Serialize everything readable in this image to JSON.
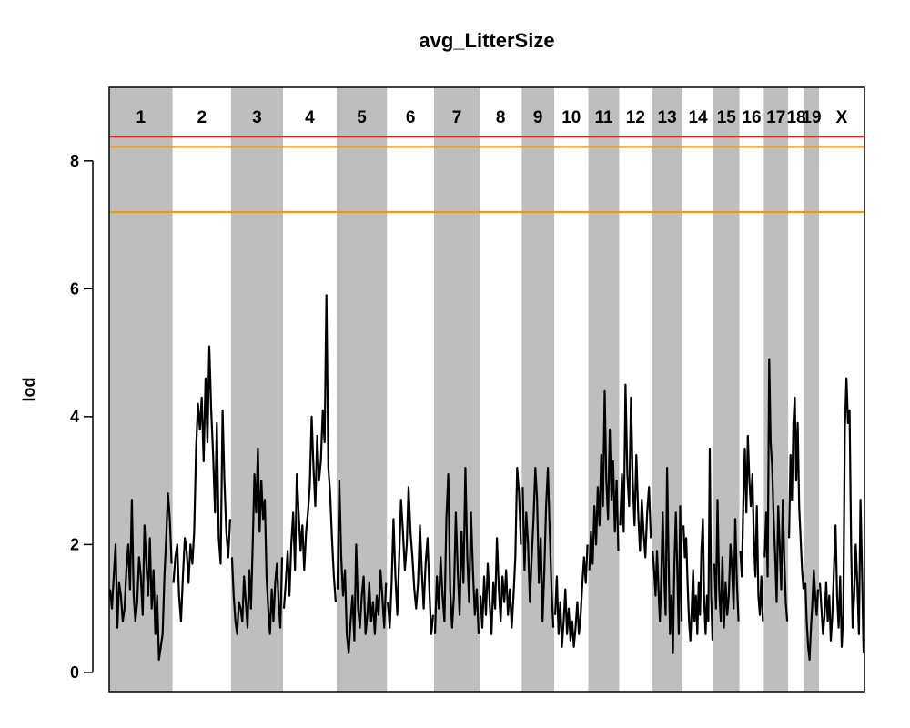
{
  "chart_data": {
    "type": "line",
    "title": "avg_LitterSize",
    "xlabel": "",
    "ylabel": "lod",
    "ylim": [
      -0.3,
      9.15
    ],
    "yticks": [
      0,
      2,
      4,
      6,
      8
    ],
    "colors": {
      "band": "#bebebe",
      "line": "#000000",
      "threshold_red": "#e8211f",
      "threshold_orange": "#e39a2b"
    },
    "thresholds": [
      {
        "value": 8.38,
        "color": "#e8211f"
      },
      {
        "value": 8.22,
        "color": "#e39a2b"
      },
      {
        "value": 7.2,
        "color": "#e39a2b"
      }
    ],
    "chromosomes": [
      {
        "label": "1",
        "start": 0,
        "end": 195,
        "shaded": true,
        "lod": [
          1.3,
          1.0,
          1.5,
          2.0,
          0.7,
          1.4,
          1.2,
          0.8,
          1.0,
          1.6,
          2.0,
          1.3,
          2.7,
          1.2,
          0.8,
          1.1,
          1.8,
          1.5,
          0.9,
          2.3,
          1.7,
          1.2,
          2.1,
          1.0,
          1.6,
          0.6,
          1.2,
          0.2,
          0.4,
          0.6,
          1.5,
          2.1,
          2.8,
          2.4,
          1.7
        ]
      },
      {
        "label": "2",
        "start": 195,
        "end": 375,
        "shaded": false,
        "lod": [
          1.4,
          1.8,
          2.0,
          1.2,
          0.8,
          1.5,
          2.1,
          1.9,
          1.4,
          2.0,
          1.7,
          2.2,
          3.5,
          4.2,
          3.8,
          4.3,
          3.3,
          4.6,
          3.6,
          5.1,
          4.1,
          3.4,
          2.5,
          3.9,
          2.1,
          1.7,
          4.1,
          3.0,
          2.2,
          1.8,
          2.4
        ]
      },
      {
        "label": "3",
        "start": 375,
        "end": 535,
        "shaded": true,
        "lod": [
          1.8,
          1.2,
          0.8,
          0.6,
          1.1,
          1.0,
          0.8,
          1.5,
          1.1,
          0.7,
          1.6,
          1.0,
          2.0,
          3.1,
          2.5,
          3.5,
          2.2,
          3.0,
          2.4,
          2.7,
          1.5,
          1.0,
          0.6,
          1.3,
          0.8,
          1.4,
          1.7,
          1.1,
          0.7,
          1.8
        ]
      },
      {
        "label": "4",
        "start": 535,
        "end": 700,
        "shaded": false,
        "lod": [
          1.0,
          1.4,
          1.9,
          1.2,
          2.0,
          2.5,
          1.6,
          3.1,
          2.5,
          1.9,
          2.3,
          1.6,
          2.2,
          2.5,
          2.9,
          4.0,
          3.2,
          2.6,
          3.7,
          3.0,
          3.3,
          4.1,
          3.6,
          5.9,
          3.2,
          2.8,
          2.1,
          1.5,
          1.1
        ]
      },
      {
        "label": "5",
        "start": 700,
        "end": 855,
        "shaded": true,
        "lod": [
          1.3,
          3.0,
          1.8,
          1.2,
          1.6,
          0.6,
          0.3,
          0.8,
          1.2,
          0.5,
          2.0,
          1.0,
          0.7,
          1.2,
          1.5,
          0.6,
          0.9,
          1.4,
          0.8,
          1.1,
          0.6,
          1.2,
          0.9,
          1.6,
          1.2,
          0.7,
          1.4
        ]
      },
      {
        "label": "6",
        "start": 855,
        "end": 1000,
        "shaded": false,
        "lod": [
          1.1,
          0.7,
          1.4,
          2.4,
          1.5,
          0.9,
          1.8,
          2.7,
          2.2,
          1.6,
          2.0,
          2.9,
          2.2,
          1.8,
          1.3,
          1.0,
          1.4,
          2.3,
          1.6,
          1.0,
          1.7,
          2.1,
          1.3,
          0.6,
          0.9
        ]
      },
      {
        "label": "7",
        "start": 1000,
        "end": 1140,
        "shaded": true,
        "lod": [
          0.6,
          1.5,
          1.0,
          1.8,
          1.2,
          0.8,
          2.4,
          3.1,
          1.3,
          0.7,
          1.2,
          2.5,
          1.6,
          0.9,
          2.2,
          1.4,
          3.2,
          1.8,
          1.1,
          2.5,
          1.6,
          0.9,
          1.3,
          0.6
        ]
      },
      {
        "label": "8",
        "start": 1140,
        "end": 1270,
        "shaded": false,
        "lod": [
          1.2,
          0.7,
          1.5,
          0.9,
          1.7,
          1.1,
          0.6,
          1.4,
          1.0,
          2.1,
          1.3,
          0.8,
          1.5,
          1.1,
          1.6,
          0.9,
          1.3,
          0.7,
          1.2,
          1.8,
          3.2,
          2.8,
          2.0
        ]
      },
      {
        "label": "9",
        "start": 1270,
        "end": 1370,
        "shaded": true,
        "lod": [
          2.9,
          1.6,
          2.5,
          2.0,
          1.1,
          1.8,
          2.4,
          3.2,
          2.7,
          1.4,
          2.1,
          0.8,
          1.6,
          2.6,
          3.2,
          2.2,
          1.3,
          0.7
        ]
      },
      {
        "label": "10",
        "start": 1370,
        "end": 1475,
        "shaded": false,
        "lod": [
          0.9,
          1.5,
          0.6,
          1.1,
          0.4,
          0.8,
          1.3,
          0.6,
          1.0,
          0.5,
          0.8,
          0.4,
          0.7,
          1.1,
          0.6,
          0.9,
          1.4,
          1.8,
          1.4,
          2.0
        ]
      },
      {
        "label": "11",
        "start": 1475,
        "end": 1570,
        "shaded": true,
        "lod": [
          1.6,
          2.2,
          1.7,
          2.6,
          2.0,
          2.9,
          2.3,
          3.4,
          2.6,
          4.4,
          3.0,
          2.4,
          3.8,
          2.7,
          3.3,
          2.2,
          3.0,
          1.9
        ]
      },
      {
        "label": "12",
        "start": 1570,
        "end": 1670,
        "shaded": false,
        "lod": [
          2.3,
          3.1,
          2.2,
          4.5,
          3.1,
          2.6,
          4.3,
          3.0,
          2.3,
          3.4,
          2.5,
          1.9,
          2.7,
          2.2,
          1.8,
          2.5,
          2.9,
          2.1
        ]
      },
      {
        "label": "13",
        "start": 1670,
        "end": 1765,
        "shaded": true,
        "lod": [
          1.9,
          1.6,
          1.2,
          1.9,
          1.3,
          0.8,
          1.5,
          2.5,
          1.5,
          0.9,
          3.2,
          1.8,
          0.6,
          1.2,
          0.3,
          1.7,
          2.5,
          1.6,
          0.6,
          2.6,
          0.8
        ]
      },
      {
        "label": "14",
        "start": 1765,
        "end": 1860,
        "shaded": false,
        "lod": [
          2.3,
          1.8,
          2.1,
          1.4,
          0.8,
          0.5,
          1.0,
          1.6,
          0.8,
          1.2,
          0.6,
          1.4,
          0.9,
          1.9,
          2.4,
          1.1,
          0.6,
          1.2,
          0.8,
          3.5,
          1.2,
          0.5
        ]
      },
      {
        "label": "15",
        "start": 1860,
        "end": 1940,
        "shaded": true,
        "lod": [
          1.7,
          1.0,
          2.7,
          1.3,
          0.8,
          1.8,
          0.7,
          1.4,
          0.9,
          1.2,
          2.0,
          1.6,
          1.0,
          2.4,
          1.4,
          0.8
        ]
      },
      {
        "label": "16",
        "start": 1940,
        "end": 2015,
        "shaded": false,
        "lod": [
          1.9,
          1.5,
          2.7,
          3.5,
          2.5,
          3.7,
          3.0,
          2.6,
          3.1,
          2.1,
          1.5,
          2.6,
          1.2,
          0.9,
          1.5,
          0.8
        ]
      },
      {
        "label": "17",
        "start": 2015,
        "end": 2090,
        "shaded": true,
        "lod": [
          1.8,
          2.5,
          1.5,
          4.9,
          3.6,
          3.2,
          2.4,
          1.8,
          1.1,
          2.6,
          2.0,
          1.3,
          2.7,
          1.8,
          1.1,
          0.8
        ]
      },
      {
        "label": "18",
        "start": 2090,
        "end": 2140,
        "shaded": false,
        "lod": [
          2.1,
          3.4,
          2.7,
          3.9,
          4.3,
          3.0,
          3.9,
          2.6,
          2.1,
          1.6,
          1.3
        ]
      },
      {
        "label": "19",
        "start": 2140,
        "end": 2185,
        "shaded": true,
        "lod": [
          1.4,
          0.8,
          0.4,
          0.2,
          0.7,
          1.1,
          1.6,
          1.2,
          0.9,
          1.3
        ]
      },
      {
        "label": "X",
        "start": 2185,
        "end": 2325,
        "shaded": false,
        "lod": [
          1.4,
          1.0,
          0.6,
          0.9,
          1.4,
          0.8,
          1.2,
          0.5,
          0.9,
          1.6,
          2.3,
          1.2,
          0.7,
          1.5,
          0.4,
          0.9,
          3.8,
          4.6,
          3.9,
          4.1,
          2.0,
          0.7,
          1.2,
          2.0,
          1.4,
          0.6,
          2.7,
          1.6,
          0.3
        ]
      }
    ]
  }
}
